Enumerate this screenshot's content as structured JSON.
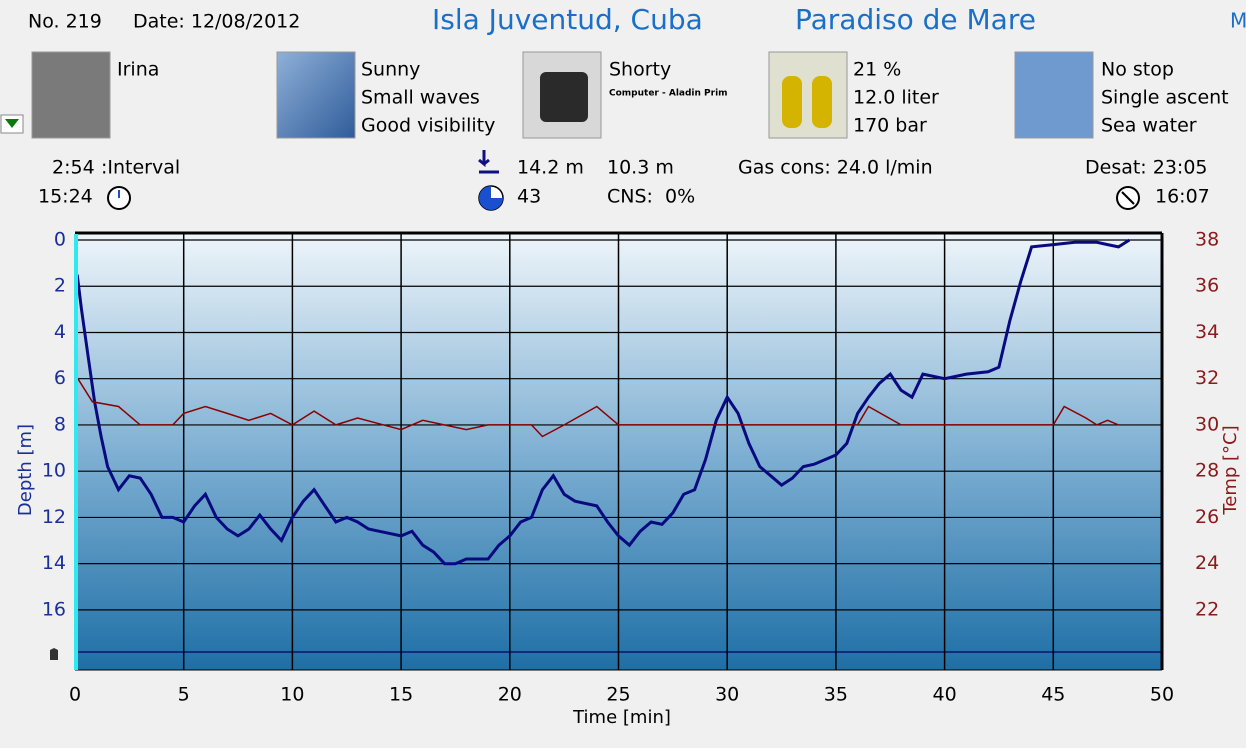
{
  "header": {
    "number": "No. 219",
    "date": "Date: 12/08/2012",
    "location": "Isla Juventud, Cuba",
    "site": "Paradiso de Mare",
    "cut": "M"
  },
  "panels": [
    {
      "lines": [
        "Irina"
      ]
    },
    {
      "lines": [
        "Sunny",
        "Small waves",
        "Good visibility"
      ]
    },
    {
      "lines": [
        "Shorty"
      ],
      "sub": "Computer - Aladin Prim"
    },
    {
      "lines": [
        "21 %",
        "12.0 liter",
        "170 bar"
      ]
    },
    {
      "lines": [
        "No stop",
        "Single ascent",
        "Sea water"
      ]
    }
  ],
  "stats": {
    "interval": "2:54",
    "interval_label": ":Interval",
    "time": "15:24",
    "max_depth": "14.2 m",
    "avg_depth": "10.3 m",
    "duration": "43",
    "cns": "CNS:  0%",
    "gas": "Gas cons: 24.0 l/min",
    "desat": "Desat: 23:05",
    "nofly": "16:07"
  },
  "chart_data": {
    "type": "line",
    "xlabel": "Time [min]",
    "ylabel": "Depth [m]",
    "y2label": "Temp [°C]",
    "xlim": [
      0,
      50
    ],
    "xticks": [
      0,
      5,
      10,
      15,
      20,
      25,
      30,
      35,
      40,
      45,
      50
    ],
    "ylim": [
      18.6,
      0
    ],
    "yticks": [
      0,
      2,
      4,
      6,
      8,
      10,
      12,
      14,
      16
    ],
    "y2lim": [
      19.4,
      38
    ],
    "y2ticks": [
      22,
      24,
      26,
      28,
      30,
      32,
      34,
      36,
      38
    ],
    "grid": true,
    "series": [
      {
        "name": "Depth",
        "color": "#0a0a80",
        "x": [
          0.1,
          0.3,
          0.6,
          0.9,
          1.2,
          1.5,
          2,
          2.5,
          3,
          3.5,
          4,
          4.5,
          5,
          5.5,
          6,
          6.5,
          7,
          7.5,
          8,
          8.5,
          9,
          9.5,
          10,
          10.5,
          11,
          11.5,
          12,
          12.5,
          13,
          13.5,
          14,
          15,
          15.5,
          16,
          16.5,
          17,
          17.5,
          18,
          19,
          19.5,
          20,
          20.5,
          21,
          21.5,
          22,
          22.5,
          23,
          24,
          24.5,
          25,
          25.5,
          26,
          26.5,
          27,
          27.5,
          28,
          28.5,
          29,
          29.5,
          30,
          30.5,
          31,
          31.5,
          32,
          32.5,
          33,
          33.5,
          34,
          35,
          35.5,
          36,
          36.5,
          37,
          37.5,
          38,
          38.5,
          39,
          40,
          41,
          42,
          42.5,
          43,
          43.5,
          44,
          45,
          46,
          47,
          47.5,
          48,
          48.5
        ],
        "values": [
          1.5,
          3,
          5,
          7,
          8.5,
          9.8,
          10.8,
          10.2,
          10.3,
          11,
          12,
          12,
          12.2,
          11.5,
          11,
          12,
          12.5,
          12.8,
          12.5,
          11.9,
          12.5,
          13,
          12,
          11.3,
          10.8,
          11.5,
          12.2,
          12,
          12.2,
          12.5,
          12.6,
          12.8,
          12.6,
          13.2,
          13.5,
          14,
          14,
          13.8,
          13.8,
          13.2,
          12.8,
          12.2,
          12,
          10.8,
          10.2,
          11,
          11.3,
          11.5,
          12.2,
          12.8,
          13.2,
          12.6,
          12.2,
          12.3,
          11.8,
          11,
          10.8,
          9.5,
          7.8,
          6.8,
          7.5,
          8.8,
          9.8,
          10.2,
          10.6,
          10.3,
          9.8,
          9.7,
          9.3,
          8.8,
          7.5,
          6.8,
          6.2,
          5.8,
          6.5,
          6.8,
          5.8,
          6,
          5.8,
          5.7,
          5.5,
          3.5,
          1.8,
          0.3,
          0.2,
          0.1,
          0.1,
          0.2,
          0.3,
          0
        ]
      },
      {
        "name": "Temp",
        "color": "#8b0000",
        "axis": "y2",
        "x": [
          0,
          0.8,
          2,
          3,
          4.5,
          5,
          6,
          7,
          8,
          9,
          10,
          11,
          12,
          13,
          15,
          16,
          18,
          19,
          21,
          21.5,
          22.5,
          24,
          25,
          36,
          36.5,
          38,
          39,
          43,
          45,
          45.5,
          46.5,
          47,
          47.5,
          48
        ],
        "values": [
          32.2,
          31,
          30.8,
          30,
          30,
          30.5,
          30.8,
          30.5,
          30.2,
          30.5,
          30,
          30.6,
          30,
          30.3,
          29.8,
          30.2,
          29.8,
          30,
          30,
          29.5,
          30,
          30.8,
          30,
          30,
          30.8,
          30,
          30,
          30,
          30,
          30.8,
          30.3,
          30,
          30.2,
          30
        ]
      }
    ]
  }
}
